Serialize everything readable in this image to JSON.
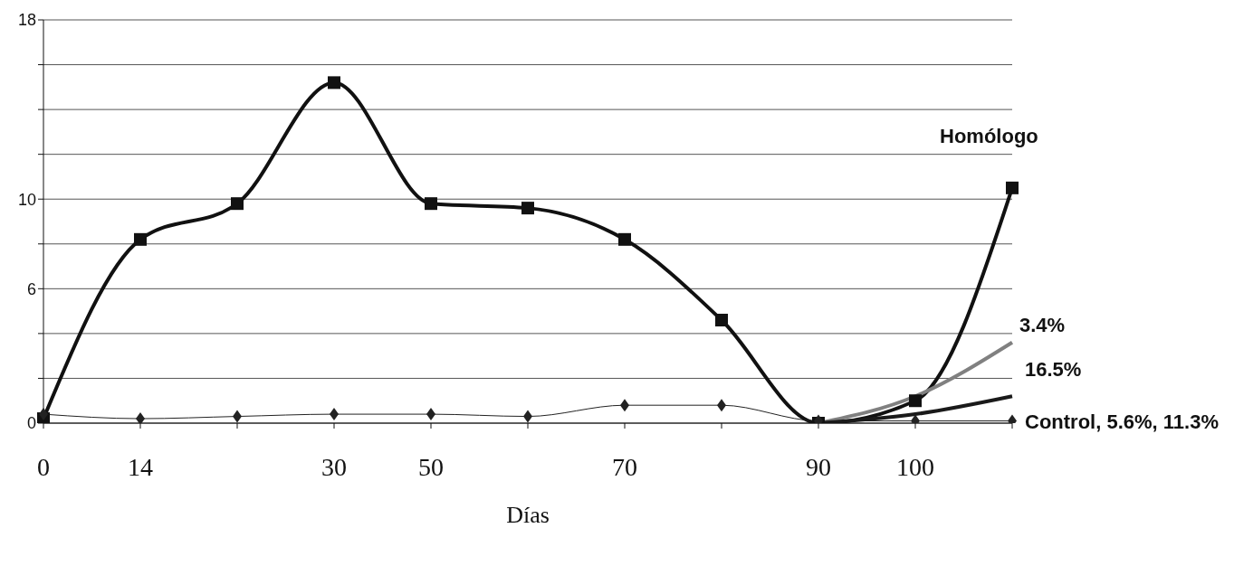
{
  "chart_data": {
    "type": "line",
    "xlabel": "Días",
    "categories": [
      "0",
      "14",
      null,
      "30",
      "50",
      null,
      "70",
      null,
      "90",
      "100",
      null
    ],
    "ylim": [
      0,
      18
    ],
    "yticks": [
      0,
      {
        "value": 2,
        "label": null
      },
      {
        "value": 4,
        "label": null
      },
      6,
      {
        "value": 8,
        "label": null
      },
      10,
      {
        "value": 12,
        "label": null
      },
      {
        "value": 14,
        "label": null
      },
      {
        "value": 16,
        "label": null
      },
      18
    ],
    "grid": "y",
    "legend": false,
    "line_style": "solid",
    "series": [
      {
        "name": "Homólogo",
        "color": "#111111",
        "marker": "square",
        "values": [
          0.2,
          8.2,
          9.8,
          15.2,
          9.8,
          9.6,
          8.2,
          4.6,
          0,
          1.0,
          10.5
        ]
      },
      {
        "name": "Control, 5.6%, 11.3%",
        "color": "#222222",
        "marker": "diamond",
        "values": [
          0.4,
          0.2,
          0.3,
          0.4,
          0.4,
          0.3,
          0.8,
          0.8,
          0.1,
          0.1,
          0.1
        ]
      },
      {
        "name": "3.4%",
        "color": "#808080",
        "marker": "none",
        "values": [
          null,
          null,
          null,
          null,
          null,
          null,
          null,
          null,
          0,
          1.2,
          3.6
        ]
      },
      {
        "name": "16.5%",
        "color": "#1a1a1a",
        "marker": "none",
        "values": [
          null,
          null,
          null,
          null,
          null,
          null,
          null,
          null,
          0,
          0.4,
          1.2
        ]
      }
    ]
  }
}
